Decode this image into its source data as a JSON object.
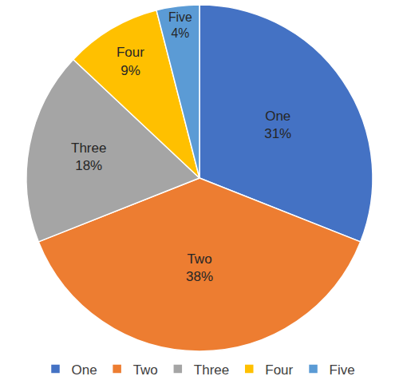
{
  "chart_data": {
    "type": "pie",
    "categories": [
      "One",
      "Two",
      "Three",
      "Four",
      "Five"
    ],
    "values": [
      31,
      38,
      18,
      9,
      4
    ],
    "value_labels": [
      "31%",
      "38%",
      "18%",
      "9%",
      "4%"
    ],
    "colors": [
      "#4472c4",
      "#ed7d31",
      "#a5a5a5",
      "#ffc000",
      "#5b9bd5"
    ],
    "data_labels": true,
    "legend": "bottom"
  }
}
